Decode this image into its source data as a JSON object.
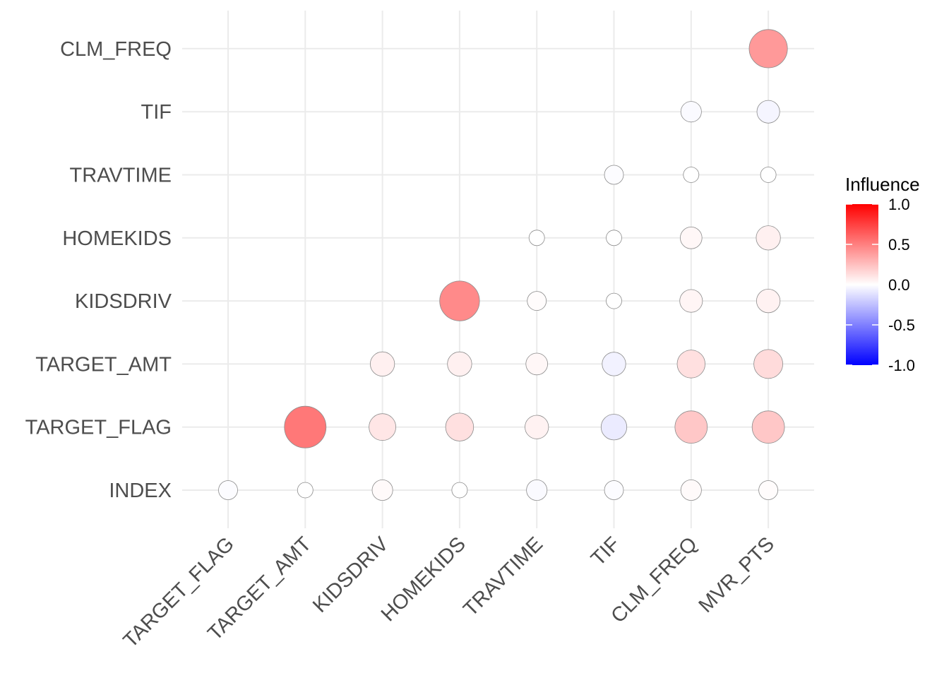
{
  "chart_data": {
    "type": "scatter",
    "subtype": "correlation-bubble-matrix",
    "x_categories": [
      "TARGET_FLAG",
      "TARGET_AMT",
      "KIDSDRIV",
      "HOMEKIDS",
      "TRAVTIME",
      "TIF",
      "CLM_FREQ",
      "MVR_PTS"
    ],
    "y_categories": [
      "INDEX",
      "TARGET_FLAG",
      "TARGET_AMT",
      "KIDSDRIV",
      "HOMEKIDS",
      "TRAVTIME",
      "TIF",
      "CLM_FREQ"
    ],
    "points": [
      {
        "x": "TARGET_FLAG",
        "y": "INDEX",
        "value": -0.01
      },
      {
        "x": "TARGET_AMT",
        "y": "INDEX",
        "value": 0.0
      },
      {
        "x": "KIDSDRIV",
        "y": "INDEX",
        "value": 0.02
      },
      {
        "x": "HOMEKIDS",
        "y": "INDEX",
        "value": 0.0
      },
      {
        "x": "TRAVTIME",
        "y": "INDEX",
        "value": -0.02
      },
      {
        "x": "TIF",
        "y": "INDEX",
        "value": -0.01
      },
      {
        "x": "CLM_FREQ",
        "y": "INDEX",
        "value": 0.02
      },
      {
        "x": "MVR_PTS",
        "y": "INDEX",
        "value": 0.01
      },
      {
        "x": "TARGET_AMT",
        "y": "TARGET_FLAG",
        "value": 0.53
      },
      {
        "x": "KIDSDRIV",
        "y": "TARGET_FLAG",
        "value": 0.1
      },
      {
        "x": "HOMEKIDS",
        "y": "TARGET_FLAG",
        "value": 0.12
      },
      {
        "x": "TRAVTIME",
        "y": "TARGET_FLAG",
        "value": 0.05
      },
      {
        "x": "TIF",
        "y": "TARGET_FLAG",
        "value": -0.08
      },
      {
        "x": "CLM_FREQ",
        "y": "TARGET_FLAG",
        "value": 0.22
      },
      {
        "x": "MVR_PTS",
        "y": "TARGET_FLAG",
        "value": 0.22
      },
      {
        "x": "KIDSDRIV",
        "y": "TARGET_AMT",
        "value": 0.06
      },
      {
        "x": "HOMEKIDS",
        "y": "TARGET_AMT",
        "value": 0.06
      },
      {
        "x": "TRAVTIME",
        "y": "TARGET_AMT",
        "value": 0.03
      },
      {
        "x": "TIF",
        "y": "TARGET_AMT",
        "value": -0.05
      },
      {
        "x": "CLM_FREQ",
        "y": "TARGET_AMT",
        "value": 0.12
      },
      {
        "x": "MVR_PTS",
        "y": "TARGET_AMT",
        "value": 0.14
      },
      {
        "x": "HOMEKIDS",
        "y": "KIDSDRIV",
        "value": 0.46
      },
      {
        "x": "TRAVTIME",
        "y": "KIDSDRIV",
        "value": 0.01
      },
      {
        "x": "TIF",
        "y": "KIDSDRIV",
        "value": 0.0
      },
      {
        "x": "CLM_FREQ",
        "y": "KIDSDRIV",
        "value": 0.04
      },
      {
        "x": "MVR_PTS",
        "y": "KIDSDRIV",
        "value": 0.05
      },
      {
        "x": "TRAVTIME",
        "y": "HOMEKIDS",
        "value": 0.0
      },
      {
        "x": "TIF",
        "y": "HOMEKIDS",
        "value": 0.0
      },
      {
        "x": "CLM_FREQ",
        "y": "HOMEKIDS",
        "value": 0.03
      },
      {
        "x": "MVR_PTS",
        "y": "HOMEKIDS",
        "value": 0.06
      },
      {
        "x": "TIF",
        "y": "TRAVTIME",
        "value": -0.01
      },
      {
        "x": "CLM_FREQ",
        "y": "TRAVTIME",
        "value": 0.0
      },
      {
        "x": "MVR_PTS",
        "y": "TRAVTIME",
        "value": 0.0
      },
      {
        "x": "CLM_FREQ",
        "y": "TIF",
        "value": -0.02
      },
      {
        "x": "MVR_PTS",
        "y": "TIF",
        "value": -0.04
      },
      {
        "x": "MVR_PTS",
        "y": "CLM_FREQ",
        "value": 0.4
      }
    ],
    "color_scale": {
      "low": "#0000ff",
      "mid": "#ffffff",
      "high": "#ff0000",
      "limits": [
        -1,
        1
      ]
    },
    "size_by": "absolute value",
    "legend": {
      "title": "Influence",
      "ticks": [
        1.0,
        0.5,
        0.0,
        -0.5,
        -1.0
      ],
      "tick_labels": [
        "1.0",
        "0.5",
        "0.0",
        "-0.5",
        "-1.0"
      ],
      "placement": "right"
    },
    "grid": true,
    "title": "",
    "xlabel": "",
    "ylabel": ""
  }
}
